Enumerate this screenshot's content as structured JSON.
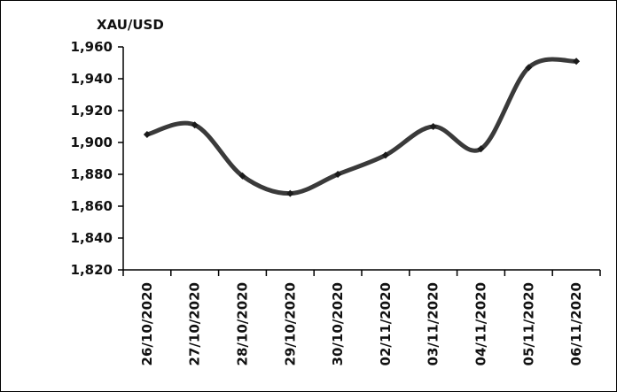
{
  "chart_data": {
    "type": "line",
    "unit_label": "XAU/USD",
    "categories": [
      "26/10/2020",
      "27/10/2020",
      "28/10/2020",
      "29/10/2020",
      "30/10/2020",
      "02/11/2020",
      "03/11/2020",
      "04/11/2020",
      "05/11/2020",
      "06/11/2020"
    ],
    "series": [
      {
        "values": [
          1905,
          1911,
          1879,
          1868,
          1880,
          1892,
          1910,
          1896,
          1947,
          1951
        ]
      }
    ],
    "y_ticks": [
      "1,820",
      "1,840",
      "1,860",
      "1,880",
      "1,900",
      "1,920",
      "1,940",
      "1,960"
    ],
    "ylim": [
      1820,
      1960
    ],
    "grid": false,
    "smooth": true,
    "line_color": "#3a3a3a"
  }
}
